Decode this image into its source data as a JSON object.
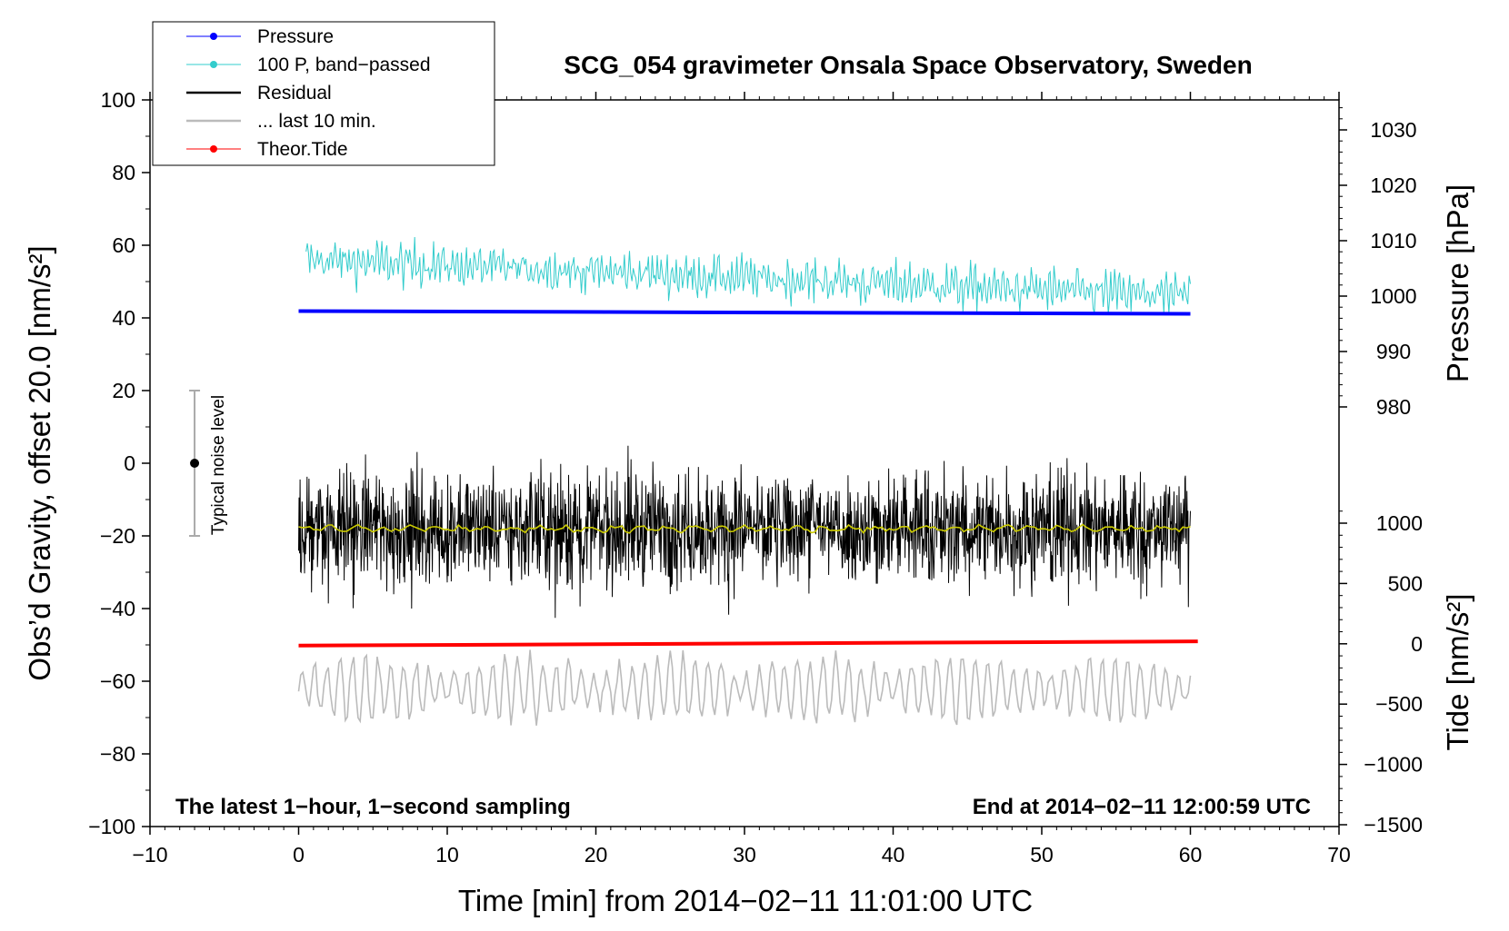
{
  "chart_data": {
    "type": "line",
    "title": "SCG_054 gravimeter Onsala Space Observatory, Sweden",
    "xlabel": "Time [min] from 2014−02−11 11:01:00 UTC",
    "ylabel_left": "Obs’d Gravity, offset 20.0 [nm/s²]",
    "ylabel_right_upper": "Pressure [hPa]",
    "ylabel_right_lower": "Tide [nm/s²]",
    "xlim": [
      -10,
      70
    ],
    "ylim_left": [
      -100,
      100
    ],
    "x_ticks": [
      "−10",
      "0",
      "10",
      "20",
      "30",
      "40",
      "50",
      "60",
      "70"
    ],
    "y_left_ticks": [
      "100",
      "80",
      "60",
      "40",
      "20",
      "0",
      "−20",
      "−40",
      "−60",
      "−80",
      "−100"
    ],
    "y_pressure_ticks": [
      "1030",
      "1020",
      "1010",
      "1000",
      "990",
      "980"
    ],
    "y_pressure_values": [
      1030,
      1020,
      1010,
      1000,
      990,
      980
    ],
    "y_tide_ticks": [
      "1000",
      "500",
      "0",
      "−500",
      "−1000",
      "−1500"
    ],
    "y_tide_values": [
      1000,
      500,
      0,
      -500,
      -1000,
      -1500
    ],
    "note_left": "The latest 1−hour, 1−second sampling",
    "note_right": "End at 2014−02−11 12:00:59 UTC",
    "noise_label": "Typical noise level",
    "noise_bar": {
      "x": -7,
      "center": 0,
      "low": -20,
      "high": 20
    },
    "legend": [
      {
        "label": "Pressure",
        "color": "#0000ff",
        "marker": true
      },
      {
        "label": "100 P, band−passed",
        "color": "#33cccc",
        "marker": true
      },
      {
        "label": "Residual",
        "color": "#000000",
        "marker": false
      },
      {
        "label": "... last 10 min.",
        "color": "#bbbbbb",
        "marker": false
      },
      {
        "label": "Theor.Tide",
        "color": "#ff0000",
        "marker": true
      }
    ],
    "series": [
      {
        "name": "Pressure",
        "color": "#0000ff",
        "axis": "pressure",
        "x": [
          0,
          60
        ],
        "values": [
          997.3,
          996.8
        ],
        "approx": true
      },
      {
        "name": "100 P, band−passed",
        "color": "#33cccc",
        "axis": "left",
        "x_range": [
          0.5,
          60
        ],
        "mean_start": 56,
        "mean_end": 46,
        "amplitude": 5,
        "approx": true
      },
      {
        "name": "Residual",
        "color": "#000000",
        "axis": "left",
        "x_range": [
          0,
          60
        ],
        "mean": -18,
        "amplitude": 10,
        "approx": true
      },
      {
        "name": "Residual (smoothed)",
        "color": "#cccc00",
        "axis": "left",
        "x_range": [
          0,
          60
        ],
        "mean": -18,
        "approx": true
      },
      {
        "name": "... last 10 min.",
        "color": "#bbbbbb",
        "axis": "left",
        "x_range": [
          0,
          60
        ],
        "mean": -62,
        "amplitude": 9,
        "approx": true
      },
      {
        "name": "Theor.Tide",
        "color": "#ff0000",
        "axis": "tide",
        "x": [
          0,
          60.5
        ],
        "values": [
          -15,
          20
        ],
        "approx": true
      }
    ]
  }
}
